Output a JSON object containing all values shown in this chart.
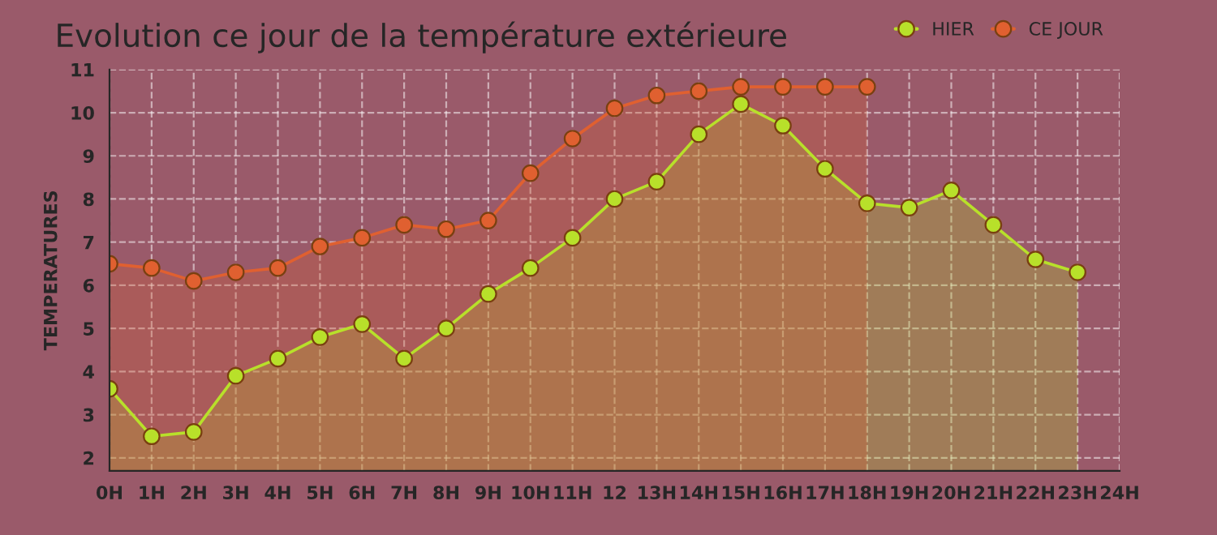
{
  "chart_data": {
    "type": "area",
    "title": "Evolution ce jour de la température extérieure",
    "ylabel": "TEMPERATURES",
    "categories": [
      "0H",
      "1H",
      "2H",
      "3H",
      "4H",
      "5H",
      "6H",
      "7H",
      "8H",
      "9H",
      "10H",
      "11H",
      "12",
      "13H",
      "14H",
      "15H",
      "16H",
      "17H",
      "18H",
      "19H",
      "20H",
      "21H",
      "22H",
      "23H",
      "24H"
    ],
    "series": [
      {
        "name": "HIER",
        "color": "#b8e02a",
        "values": [
          3.6,
          2.5,
          2.6,
          3.9,
          4.3,
          4.8,
          5.1,
          4.3,
          5.0,
          5.8,
          6.4,
          7.1,
          8.0,
          8.4,
          9.5,
          10.2,
          9.7,
          8.7,
          7.9,
          7.8,
          8.2,
          7.4,
          6.6,
          6.3,
          null
        ]
      },
      {
        "name": "CE JOUR",
        "color": "#e06030",
        "values": [
          6.5,
          6.4,
          6.1,
          6.3,
          6.4,
          6.9,
          7.1,
          7.4,
          7.3,
          7.5,
          8.6,
          9.4,
          10.1,
          10.4,
          10.5,
          10.6,
          10.6,
          10.6,
          10.6,
          null,
          null,
          null,
          null,
          null,
          null
        ]
      }
    ],
    "ylim": [
      1.7,
      11
    ],
    "yticks": [
      2,
      3,
      4,
      5,
      6,
      7,
      8,
      9,
      10,
      11
    ],
    "grid": true,
    "legend": "top right",
    "marker": "circle",
    "line_style": "solid"
  }
}
